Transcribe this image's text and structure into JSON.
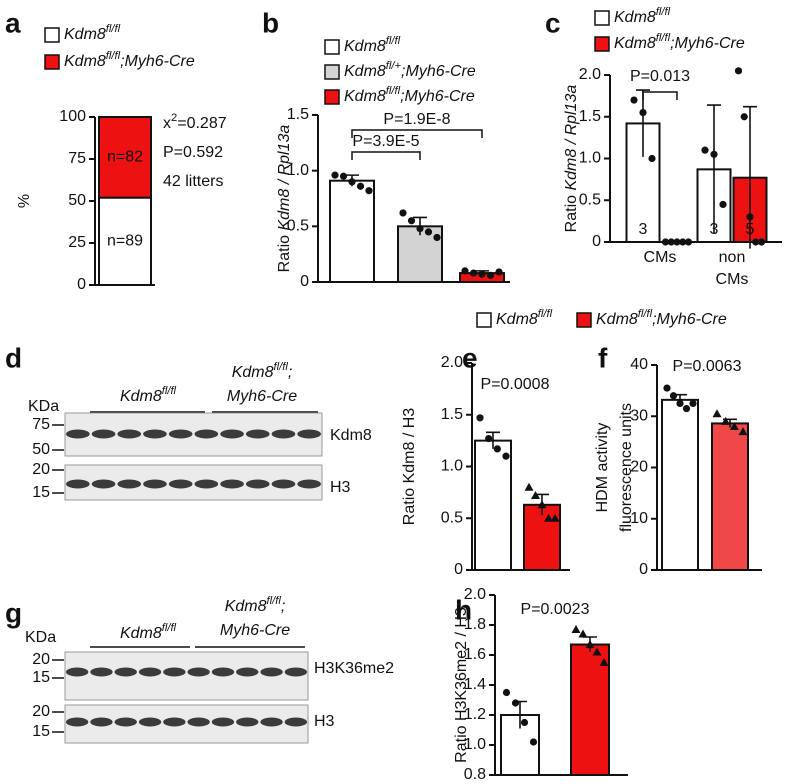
{
  "chart_data": [
    {
      "label": "a",
      "type": "stacked_bar",
      "ylabel": "%",
      "ylim": [
        0,
        100
      ],
      "yticks": [
        0,
        25,
        50,
        75,
        100
      ],
      "series": [
        {
          "name": [
            "Kdm8",
            "fl/fl"
          ],
          "color": "#ffffff",
          "values": [
            52
          ],
          "count_labels": [
            "n=89"
          ]
        },
        {
          "name": [
            "Kdm8",
            "fl/fl",
            ";Myh6-Cre"
          ],
          "color": "#ee1111",
          "values": [
            48
          ],
          "count_labels": [
            "n=82"
          ]
        }
      ],
      "stats": [
        [
          "x",
          "2",
          "=0.287"
        ],
        [
          "P=0.592"
        ],
        [
          "42 litters"
        ]
      ]
    },
    {
      "label": "b",
      "type": "bar",
      "ylabel": [
        "Ratio ",
        "Kdm8 / Rpl13a"
      ],
      "ylim": [
        0,
        1.5
      ],
      "yticks": [
        0,
        0.5,
        {
          "value": 1,
          "label": "1.0"
        },
        1.5
      ],
      "series": [
        {
          "name": [
            "Kdm8",
            "fl/fl"
          ],
          "color": "#ffffff",
          "marker": "circle",
          "values": [
            0.91
          ],
          "errors": [
            0.05
          ],
          "points": [
            [
              0.96,
              0.95,
              0.9,
              0.86,
              0.82
            ]
          ]
        },
        {
          "name": [
            "Kdm8",
            "fl/+",
            ";Myh6-Cre"
          ],
          "color": "#d3d3d3",
          "marker": "circle",
          "values": [
            0.5
          ],
          "errors": [
            0.08
          ],
          "points": [
            [
              0.62,
              0.55,
              0.48,
              0.45,
              0.4
            ]
          ]
        },
        {
          "name": [
            "Kdm8",
            "fl/fl",
            ";Myh6-Cre"
          ],
          "color": "#ee1111",
          "marker": "circle",
          "values": [
            0.08
          ],
          "errors": [
            0.02
          ],
          "points": [
            [
              0.1,
              0.08,
              0.07,
              0.06,
              0.09
            ]
          ]
        }
      ],
      "annotations": [
        "P=3.9E-5",
        "P=1.9E-8"
      ]
    },
    {
      "label": "c",
      "type": "bar",
      "ylabel": [
        "Ratio ",
        "Kdm8 / Rpl13a"
      ],
      "categories": [
        "CMs",
        "non CMs"
      ],
      "ylim": [
        0,
        2
      ],
      "yticks": [
        0,
        0.5,
        {
          "value": 1,
          "label": "1.0"
        },
        1.5,
        {
          "value": 2,
          "label": "2.0"
        }
      ],
      "series": [
        {
          "name": [
            "Kdm8",
            "fl/fl"
          ],
          "color": "#ffffff",
          "marker": "circle",
          "values": [
            1.42,
            0.87
          ],
          "errors": [
            0.4,
            0.77
          ],
          "points": [
            [
              1.7,
              1.55,
              1.0
            ],
            [
              1.1,
              1.05,
              0.45
            ]
          ],
          "count_labels": [
            "3",
            "3"
          ]
        },
        {
          "name": [
            "Kdm8",
            "fl/fl",
            ";Myh6-Cre"
          ],
          "color": "#ee1111",
          "marker": "circle",
          "values": [
            0,
            0.77
          ],
          "errors": [
            0,
            0.85
          ],
          "points": [
            [
              0,
              0,
              0,
              0,
              0
            ],
            [
              2.05,
              1.5,
              0.3,
              0,
              0
            ]
          ],
          "count_labels": [
            null,
            "5"
          ]
        }
      ],
      "annotations": [
        "P=0.013"
      ]
    },
    {
      "label": "e",
      "type": "bar",
      "ylabel": "Ratio Kdm8 / H3",
      "ylim": [
        0,
        2
      ],
      "yticks": [
        0,
        0.5,
        {
          "value": 1,
          "label": "1.0"
        },
        1.5,
        {
          "value": 2,
          "label": "2.0"
        }
      ],
      "series": [
        {
          "name": [
            "Kdm8",
            "fl/fl"
          ],
          "color": "#ffffff",
          "marker": "circle",
          "values": [
            1.25
          ],
          "errors": [
            0.08
          ],
          "points": [
            [
              1.47,
              1.27,
              1.17,
              1.1
            ]
          ]
        },
        {
          "name": [
            "Kdm8",
            "fl/fl",
            ";Myh6-Cre"
          ],
          "color": "#ee1111",
          "marker": "triangle",
          "values": [
            0.63
          ],
          "errors": [
            0.1
          ],
          "points": [
            [
              0.8,
              0.72,
              0.63,
              0.5,
              0.5
            ]
          ]
        }
      ],
      "annotations": [
        "P=0.0008"
      ]
    },
    {
      "label": "f",
      "type": "bar",
      "ylabel_lines": [
        "HDM activity",
        "fluorescence units"
      ],
      "ylim": [
        0,
        40
      ],
      "yticks": [
        0,
        10,
        20,
        30,
        40
      ],
      "series": [
        {
          "color": "#ffffff",
          "marker": "circle",
          "values": [
            33.2
          ],
          "errors": [
            1
          ],
          "points": [
            [
              35.5,
              34,
              32.5,
              31.5,
              32.5
            ]
          ]
        },
        {
          "color": "#f04848",
          "marker": "triangle",
          "values": [
            28.6
          ],
          "errors": [
            0.8
          ],
          "points": [
            [
              30.5,
              29,
              28,
              27
            ]
          ]
        }
      ],
      "annotations": [
        "P=0.0063"
      ]
    },
    {
      "label": "h",
      "type": "bar",
      "ylabel": "Ratio H3K36me2 / H3",
      "ylim": [
        0.8,
        2
      ],
      "yticks": [
        0.8,
        {
          "value": 1,
          "label": "1.0"
        },
        1.2,
        1.4,
        1.6,
        1.8,
        {
          "value": 2,
          "label": "2.0"
        }
      ],
      "series": [
        {
          "color": "#ffffff",
          "marker": "circle",
          "values": [
            1.2
          ],
          "errors": [
            0.09
          ],
          "points": [
            [
              1.35,
              1.28,
              1.15,
              1.02
            ]
          ]
        },
        {
          "color": "#ee1111",
          "marker": "triangle",
          "values": [
            1.67
          ],
          "errors": [
            0.05
          ],
          "points": [
            [
              1.77,
              1.74,
              1.67,
              1.62,
              1.55
            ]
          ]
        }
      ],
      "annotations": [
        "P=0.0023"
      ]
    }
  ],
  "blots": [
    {
      "label": "d",
      "kda": "KDa",
      "groups": [
        {
          "lines": [
            [
              "Kdm8",
              "fl/fl"
            ]
          ]
        },
        {
          "lines": [
            [
              "Kdm8",
              "fl/fl",
              ";"
            ],
            [
              "Myh6-Cre"
            ]
          ]
        }
      ],
      "strips": [
        {
          "target": "Kdm8",
          "markers": [
            75,
            50
          ]
        },
        {
          "target": "H3",
          "markers": [
            20,
            15
          ]
        }
      ]
    },
    {
      "label": "g",
      "kda": "KDa",
      "groups": [
        {
          "lines": [
            [
              "Kdm8",
              "fl/fl"
            ]
          ]
        },
        {
          "lines": [
            [
              "Kdm8",
              "fl/fl",
              ";"
            ],
            [
              "Myh6-Cre"
            ]
          ]
        }
      ],
      "strips": [
        {
          "target": "H3K36me2",
          "markers": [
            20,
            15
          ]
        },
        {
          "target": "H3",
          "markers": [
            20,
            15
          ]
        }
      ]
    }
  ]
}
